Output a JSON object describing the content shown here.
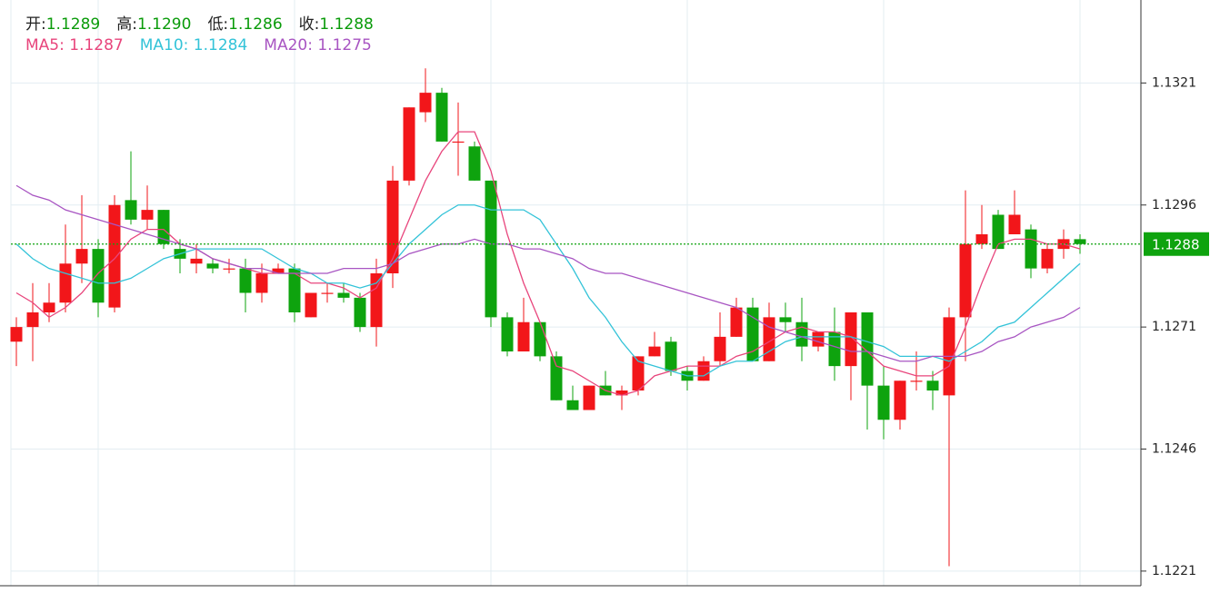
{
  "chart_data": {
    "type": "candlestick",
    "ohlc_readout": [
      {
        "label": "开:",
        "value": "1.1289"
      },
      {
        "label": "高:",
        "value": "1.1290"
      },
      {
        "label": "低:",
        "value": "1.1286"
      },
      {
        "label": "收:",
        "value": "1.1288"
      }
    ],
    "up_color": "#f2161a",
    "down_color": "#0ea30e",
    "open": [
      1.1268,
      1.1271,
      1.1274,
      1.1276,
      1.1284,
      1.1287,
      1.1275,
      1.1297,
      1.1293,
      1.1295,
      1.1287,
      1.1284,
      1.1284,
      1.1283,
      1.1283,
      1.1278,
      1.1282,
      1.1283,
      1.1273,
      1.1278,
      1.1278,
      1.1277,
      1.1271,
      1.1282,
      1.1301,
      1.1315,
      1.1319,
      1.1309,
      1.1308,
      1.1301,
      1.1273,
      1.1266,
      1.1272,
      1.1265,
      1.1256,
      1.1254,
      1.1259,
      1.1257,
      1.1258,
      1.1265,
      1.1268,
      1.1262,
      1.126,
      1.1264,
      1.1269,
      1.1275,
      1.1264,
      1.1273,
      1.1272,
      1.1267,
      1.127,
      1.1263,
      1.1274,
      1.1259,
      1.1252,
      1.126,
      1.126,
      1.1257,
      1.1273,
      1.1288,
      1.1294,
      1.129,
      1.1291,
      1.1283,
      1.1287,
      1.1289
    ],
    "high": [
      1.1273,
      1.128,
      1.128,
      1.1292,
      1.1298,
      1.1289,
      1.1298,
      1.1307,
      1.13,
      1.1295,
      1.1289,
      1.1288,
      1.1285,
      1.1285,
      1.1285,
      1.1284,
      1.1284,
      1.1284,
      1.1278,
      1.128,
      1.128,
      1.1278,
      1.1285,
      1.1304,
      1.1316,
      1.1324,
      1.132,
      1.1317,
      1.1309,
      1.1301,
      1.1274,
      1.1277,
      1.1272,
      1.1266,
      1.1259,
      1.1259,
      1.1262,
      1.1259,
      1.1265,
      1.127,
      1.1269,
      1.1263,
      1.1265,
      1.1274,
      1.1277,
      1.1277,
      1.1276,
      1.1276,
      1.1277,
      1.127,
      1.1275,
      1.1274,
      1.1274,
      1.1263,
      1.126,
      1.1266,
      1.1262,
      1.1275,
      1.1299,
      1.1296,
      1.1295,
      1.1299,
      1.1292,
      1.1288,
      1.1291,
      1.129
    ],
    "low": [
      1.1263,
      1.1264,
      1.1272,
      1.1274,
      1.128,
      1.1273,
      1.1274,
      1.1292,
      1.1291,
      1.1287,
      1.1282,
      1.1282,
      1.1282,
      1.1282,
      1.1274,
      1.1276,
      1.1282,
      1.1272,
      1.1273,
      1.1276,
      1.1276,
      1.127,
      1.1267,
      1.1279,
      1.13,
      1.1313,
      1.1309,
      1.1302,
      1.1301,
      1.1271,
      1.1265,
      1.1266,
      1.1264,
      1.1256,
      1.1254,
      1.1254,
      1.1257,
      1.1254,
      1.1257,
      1.1265,
      1.1261,
      1.1258,
      1.126,
      1.1263,
      1.1269,
      1.1264,
      1.1264,
      1.127,
      1.1264,
      1.1266,
      1.126,
      1.1256,
      1.125,
      1.1248,
      1.125,
      1.1258,
      1.1254,
      1.1222,
      1.1264,
      1.1287,
      1.1287,
      1.129,
      1.1281,
      1.1282,
      1.1285,
      1.1286
    ],
    "close": [
      1.1271,
      1.1274,
      1.1276,
      1.1284,
      1.1287,
      1.1276,
      1.1296,
      1.1293,
      1.1295,
      1.1288,
      1.1285,
      1.1285,
      1.1283,
      1.1283,
      1.1278,
      1.1282,
      1.1283,
      1.1274,
      1.1278,
      1.1278,
      1.1277,
      1.1271,
      1.1282,
      1.1301,
      1.1316,
      1.1319,
      1.1309,
      1.1309,
      1.1301,
      1.1273,
      1.1266,
      1.1272,
      1.1265,
      1.1256,
      1.1254,
      1.1259,
      1.1257,
      1.1258,
      1.1265,
      1.1267,
      1.1262,
      1.126,
      1.1264,
      1.1269,
      1.1275,
      1.1264,
      1.1273,
      1.1272,
      1.1267,
      1.127,
      1.1263,
      1.1274,
      1.1259,
      1.1252,
      1.126,
      1.126,
      1.1258,
      1.1273,
      1.1288,
      1.129,
      1.1287,
      1.1294,
      1.1283,
      1.1287,
      1.1289,
      1.1288
    ],
    "ma": [
      {
        "name": "MA5:",
        "readout": "1.1287",
        "color": "#e8457c",
        "values": [
          1.1278,
          1.1276,
          1.1273,
          1.1275,
          1.1278,
          1.1282,
          1.1285,
          1.1289,
          1.1291,
          1.1291,
          1.1288,
          1.1287,
          1.1285,
          1.1284,
          1.1283,
          1.1282,
          1.1282,
          1.1282,
          1.128,
          1.128,
          1.1279,
          1.1277,
          1.1279,
          1.1285,
          1.1293,
          1.1301,
          1.1307,
          1.1311,
          1.1311,
          1.1303,
          1.129,
          1.128,
          1.1272,
          1.1263,
          1.1262,
          1.126,
          1.1258,
          1.1257,
          1.1258,
          1.1261,
          1.1262,
          1.1263,
          1.1263,
          1.1263,
          1.1265,
          1.1266,
          1.1268,
          1.127,
          1.1271,
          1.127,
          1.127,
          1.1269,
          1.1266,
          1.1263,
          1.1262,
          1.1261,
          1.1261,
          1.1263,
          1.1271,
          1.128,
          1.1288,
          1.1289,
          1.1289,
          1.1288,
          1.1288,
          1.1287
        ]
      },
      {
        "name": "MA10:",
        "readout": "1.1284",
        "color": "#33c3d8",
        "values": [
          1.1288,
          1.1285,
          1.1283,
          1.1282,
          1.1281,
          1.128,
          1.128,
          1.1281,
          1.1283,
          1.1285,
          1.1286,
          1.1287,
          1.1287,
          1.1287,
          1.1287,
          1.1287,
          1.1285,
          1.1283,
          1.1282,
          1.128,
          1.128,
          1.1279,
          1.128,
          1.1284,
          1.1288,
          1.1291,
          1.1294,
          1.1296,
          1.1296,
          1.1295,
          1.1295,
          1.1295,
          1.1293,
          1.1288,
          1.1283,
          1.1277,
          1.1273,
          1.1268,
          1.1264,
          1.1263,
          1.1262,
          1.1261,
          1.1261,
          1.1263,
          1.1264,
          1.1264,
          1.1266,
          1.1268,
          1.1269,
          1.1269,
          1.1269,
          1.1269,
          1.1268,
          1.1267,
          1.1265,
          1.1265,
          1.1265,
          1.1264,
          1.1266,
          1.1268,
          1.1271,
          1.1272,
          1.1275,
          1.1278,
          1.1281,
          1.1284
        ]
      },
      {
        "name": "MA20:",
        "readout": "1.1275",
        "color": "#a855c2",
        "values": [
          1.13,
          1.1298,
          1.1297,
          1.1295,
          1.1294,
          1.1293,
          1.1292,
          1.1291,
          1.129,
          1.1289,
          1.1288,
          1.1287,
          1.1285,
          1.1284,
          1.1283,
          1.1283,
          1.1282,
          1.1282,
          1.1282,
          1.1282,
          1.1283,
          1.1283,
          1.1283,
          1.1284,
          1.1286,
          1.1287,
          1.1288,
          1.1288,
          1.1289,
          1.1288,
          1.1288,
          1.1287,
          1.1287,
          1.1286,
          1.1285,
          1.1283,
          1.1282,
          1.1282,
          1.1281,
          1.128,
          1.1279,
          1.1278,
          1.1277,
          1.1276,
          1.1275,
          1.1273,
          1.1271,
          1.127,
          1.1269,
          1.1268,
          1.1267,
          1.1266,
          1.1266,
          1.1265,
          1.1264,
          1.1264,
          1.1265,
          1.1265,
          1.1265,
          1.1266,
          1.1268,
          1.1269,
          1.1271,
          1.1272,
          1.1273,
          1.1275
        ]
      }
    ],
    "last_price": {
      "value": 1.1288,
      "color": "#0ea30e"
    },
    "ylim": [
      1.1218,
      1.1338
    ],
    "yticks": [
      1.1221,
      1.1246,
      1.1271,
      1.1296,
      1.1321
    ],
    "grid": true
  }
}
